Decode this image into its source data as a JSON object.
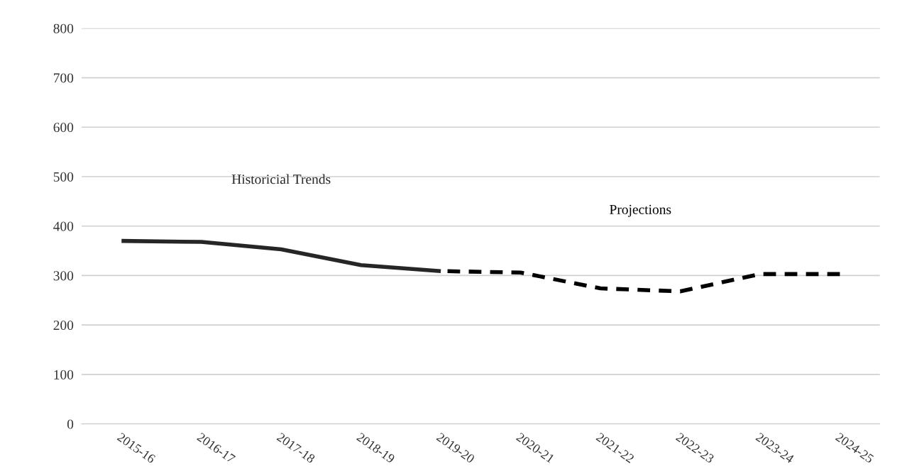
{
  "chart_data": {
    "type": "line",
    "categories": [
      "2015-16",
      "2016-17",
      "2017-18",
      "2018-19",
      "2019-20",
      "2020-21",
      "2021-22",
      "2022-23",
      "2023-24",
      "2024-25"
    ],
    "series": [
      {
        "name": "Historicial Trends",
        "color": "#262626",
        "line_style": "solid",
        "values": [
          370,
          368,
          353,
          321,
          309,
          null,
          null,
          null,
          null,
          null
        ]
      },
      {
        "name": "Projections",
        "color": "#000000",
        "line_style": "dashed",
        "values": [
          null,
          null,
          null,
          null,
          309,
          306,
          274,
          268,
          303,
          303
        ]
      }
    ],
    "ylim": [
      0,
      800
    ],
    "yticks": [
      0,
      100,
      200,
      300,
      400,
      500,
      600,
      700,
      800
    ],
    "grid": "y",
    "legend": false,
    "marker": "none"
  }
}
